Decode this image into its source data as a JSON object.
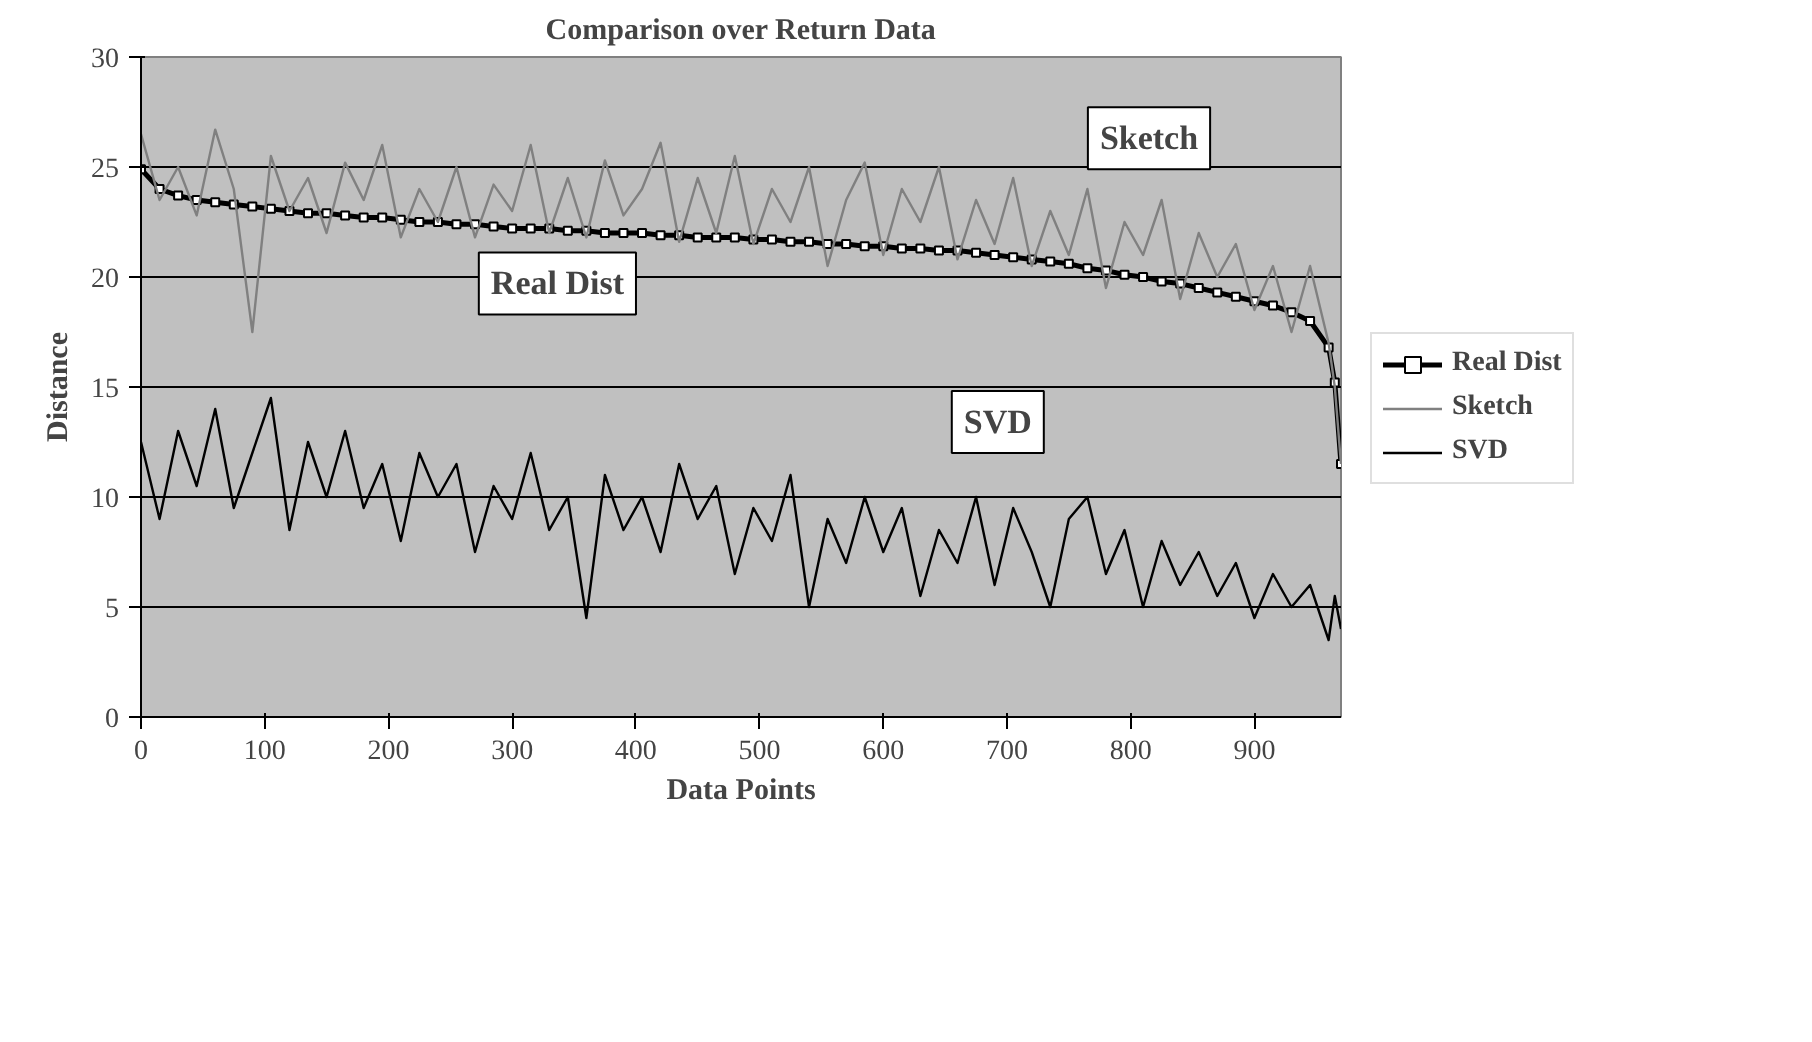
{
  "chart_data": {
    "type": "line",
    "title": "Comparison over Return Data",
    "xlabel": "Data Points",
    "ylabel": "Distance",
    "x": [
      0,
      15,
      30,
      45,
      60,
      75,
      90,
      105,
      120,
      135,
      150,
      165,
      180,
      195,
      210,
      225,
      240,
      255,
      270,
      285,
      300,
      315,
      330,
      345,
      360,
      375,
      390,
      405,
      420,
      435,
      450,
      465,
      480,
      495,
      510,
      525,
      540,
      555,
      570,
      585,
      600,
      615,
      630,
      645,
      660,
      675,
      690,
      705,
      720,
      735,
      750,
      765,
      780,
      795,
      810,
      825,
      840,
      855,
      870,
      885,
      900,
      915,
      930,
      945,
      960,
      965,
      970
    ],
    "xlim": [
      0,
      970
    ],
    "xticks": [
      0,
      100,
      200,
      300,
      400,
      500,
      600,
      700,
      800,
      900
    ],
    "ylim": [
      0,
      30
    ],
    "yticks": [
      0,
      5,
      10,
      15,
      20,
      25,
      30
    ],
    "grid": "y",
    "legend": "right",
    "series": [
      {
        "name": "Real Dist",
        "color": "#000000",
        "marker": "square",
        "values": [
          24.9,
          24.0,
          23.7,
          23.5,
          23.4,
          23.3,
          23.2,
          23.1,
          23.0,
          22.9,
          22.9,
          22.8,
          22.7,
          22.7,
          22.6,
          22.5,
          22.5,
          22.4,
          22.4,
          22.3,
          22.2,
          22.2,
          22.2,
          22.1,
          22.1,
          22.0,
          22.0,
          22.0,
          21.9,
          21.9,
          21.8,
          21.8,
          21.8,
          21.7,
          21.7,
          21.6,
          21.6,
          21.5,
          21.5,
          21.4,
          21.4,
          21.3,
          21.3,
          21.2,
          21.2,
          21.1,
          21.0,
          20.9,
          20.8,
          20.7,
          20.6,
          20.4,
          20.3,
          20.1,
          20.0,
          19.8,
          19.7,
          19.5,
          19.3,
          19.1,
          18.9,
          18.7,
          18.4,
          18.0,
          16.8,
          15.2,
          11.5
        ]
      },
      {
        "name": "Sketch",
        "color": "#808080",
        "values": [
          26.5,
          23.5,
          25.0,
          22.8,
          26.7,
          24.0,
          17.5,
          25.5,
          23.0,
          24.5,
          22.0,
          25.2,
          23.5,
          26.0,
          21.8,
          24.0,
          22.5,
          25.0,
          21.8,
          24.2,
          23.0,
          26.0,
          22.0,
          24.5,
          21.8,
          25.3,
          22.8,
          24.0,
          26.1,
          21.6,
          24.5,
          22.0,
          25.5,
          21.5,
          24.0,
          22.5,
          25.0,
          20.5,
          23.5,
          25.2,
          21.0,
          24.0,
          22.5,
          25.0,
          20.8,
          23.5,
          21.5,
          24.5,
          20.5,
          23.0,
          21.0,
          24.0,
          19.5,
          22.5,
          21.0,
          23.5,
          19.0,
          22.0,
          20.0,
          21.5,
          18.5,
          20.5,
          17.5,
          20.5,
          17.0,
          15.0,
          11.5
        ]
      },
      {
        "name": "SVD",
        "color": "#000000",
        "values": [
          12.5,
          9.0,
          13.0,
          10.5,
          14.0,
          9.5,
          12.0,
          14.5,
          8.5,
          12.5,
          10.0,
          13.0,
          9.5,
          11.5,
          8.0,
          12.0,
          10.0,
          11.5,
          7.5,
          10.5,
          9.0,
          12.0,
          8.5,
          10.0,
          4.5,
          11.0,
          8.5,
          10.0,
          7.5,
          11.5,
          9.0,
          10.5,
          6.5,
          9.5,
          8.0,
          11.0,
          5.0,
          9.0,
          7.0,
          10.0,
          7.5,
          9.5,
          5.5,
          8.5,
          7.0,
          10.0,
          6.0,
          9.5,
          7.5,
          5.0,
          9.0,
          10.0,
          6.5,
          8.5,
          5.0,
          8.0,
          6.0,
          7.5,
          5.5,
          7.0,
          4.5,
          6.5,
          5.0,
          6.0,
          3.5,
          5.5,
          4.0
        ]
      }
    ],
    "annotations": [
      "Real Dist",
      "Sketch",
      "SVD"
    ]
  }
}
